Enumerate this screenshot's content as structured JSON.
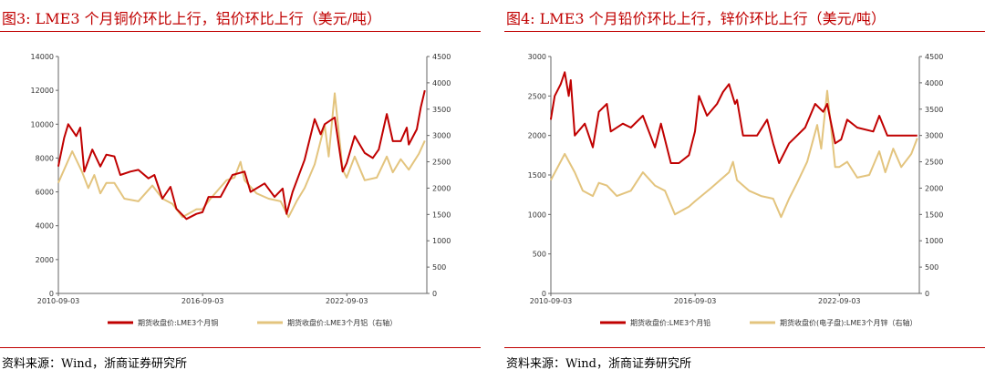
{
  "charts": [
    {
      "title": "图3:  LME3 个月铜价环比上行，铝价环比上行（美元/吨）",
      "source": "资料来源：Wind，浙商证券研究所"
    },
    {
      "title": "图4:  LME3 个月铅价环比上行，锌价环比上行（美元/吨）",
      "source": "资料来源：Wind，浙商证券研究所"
    }
  ],
  "chart_data": [
    {
      "type": "line",
      "xlim": [
        "2010-09-03",
        "2026-01-01"
      ],
      "xticks": [
        "2010-09-03",
        "2016-09-03",
        "2022-09-03"
      ],
      "ylim": [
        0,
        14000
      ],
      "yticks": [
        0,
        2000,
        4000,
        6000,
        8000,
        10000,
        12000,
        14000
      ],
      "y2lim": [
        0,
        4500
      ],
      "y2ticks": [
        0,
        500,
        1000,
        1500,
        2000,
        2500,
        3000,
        3500,
        4000,
        4500
      ],
      "legend": "bottom",
      "grid": false,
      "series": [
        {
          "name": "期货收盘价:LME3个月铜",
          "axis": "left",
          "color": "#c00000",
          "x": [
            "2010-09",
            "2010-12",
            "2011-02",
            "2011-06",
            "2011-08",
            "2011-10",
            "2012-02",
            "2012-06",
            "2012-09",
            "2013-01",
            "2013-04",
            "2013-09",
            "2014-01",
            "2014-06",
            "2014-09",
            "2015-01",
            "2015-05",
            "2015-08",
            "2016-01",
            "2016-06",
            "2016-09",
            "2016-12",
            "2017-06",
            "2017-12",
            "2018-06",
            "2018-09",
            "2019-04",
            "2019-09",
            "2020-01",
            "2020-03",
            "2020-06",
            "2020-12",
            "2021-05",
            "2021-08",
            "2021-10",
            "2022-03",
            "2022-07",
            "2022-09",
            "2023-01",
            "2023-06",
            "2023-10",
            "2024-01",
            "2024-05",
            "2024-08",
            "2024-12",
            "2025-03",
            "2025-04",
            "2025-08",
            "2025-10",
            "2025-12"
          ],
          "values": [
            7500,
            9200,
            10000,
            9300,
            9800,
            7200,
            8500,
            7500,
            8200,
            8100,
            7000,
            7200,
            7300,
            6800,
            7000,
            5600,
            6300,
            5000,
            4400,
            4700,
            4800,
            5700,
            5700,
            7000,
            7200,
            6000,
            6500,
            5700,
            6200,
            4700,
            6000,
            7900,
            10300,
            9400,
            10000,
            10400,
            7200,
            7700,
            9300,
            8300,
            8000,
            8500,
            10600,
            9000,
            9000,
            9800,
            8800,
            9700,
            11000,
            12000
          ]
        },
        {
          "name": "期货收盘价:LME3个月铝（右轴）",
          "axis": "right",
          "color": "#e3c47e",
          "x": [
            "2010-09",
            "2011-04",
            "2011-09",
            "2011-12",
            "2012-03",
            "2012-06",
            "2012-09",
            "2013-01",
            "2013-06",
            "2014-01",
            "2014-08",
            "2015-01",
            "2015-06",
            "2015-11",
            "2016-06",
            "2016-09",
            "2017-01",
            "2017-09",
            "2018-01",
            "2018-04",
            "2018-06",
            "2018-12",
            "2019-06",
            "2019-12",
            "2020-04",
            "2020-08",
            "2020-12",
            "2021-05",
            "2021-10",
            "2021-12",
            "2022-03",
            "2022-07",
            "2022-09",
            "2023-01",
            "2023-06",
            "2023-12",
            "2024-05",
            "2024-08",
            "2024-12",
            "2025-04",
            "2025-09",
            "2025-12"
          ],
          "values": [
            2100,
            2700,
            2300,
            2000,
            2250,
            1900,
            2100,
            2100,
            1800,
            1750,
            2050,
            1800,
            1700,
            1450,
            1600,
            1600,
            1800,
            2150,
            2200,
            2500,
            2150,
            1900,
            1800,
            1750,
            1450,
            1750,
            2000,
            2450,
            3200,
            2600,
            3800,
            2350,
            2200,
            2600,
            2150,
            2200,
            2600,
            2300,
            2550,
            2350,
            2650,
            2900
          ]
        }
      ]
    },
    {
      "type": "line",
      "xlim": [
        "2010-09-03",
        "2026-01-01"
      ],
      "xticks": [
        "2010-09-03",
        "2016-09-03",
        "2022-09-03"
      ],
      "ylim": [
        0,
        3000
      ],
      "yticks": [
        0,
        500,
        1000,
        1500,
        2000,
        2500,
        3000
      ],
      "y2lim": [
        0,
        4500
      ],
      "y2ticks": [
        0,
        500,
        1000,
        1500,
        2000,
        2500,
        3000,
        3500,
        4000,
        4500
      ],
      "legend": "bottom",
      "grid": false,
      "series": [
        {
          "name": "期货收盘价:LME3个月铅",
          "axis": "left",
          "color": "#c00000",
          "x": [
            "2010-09",
            "2010-11",
            "2011-02",
            "2011-04",
            "2011-06",
            "2011-07",
            "2011-09",
            "2012-02",
            "2012-06",
            "2012-09",
            "2013-01",
            "2013-03",
            "2013-09",
            "2014-01",
            "2014-07",
            "2015-01",
            "2015-04",
            "2015-09",
            "2016-01",
            "2016-06",
            "2016-09",
            "2016-11",
            "2017-03",
            "2017-08",
            "2017-11",
            "2018-02",
            "2018-05",
            "2018-06",
            "2018-09",
            "2019-01",
            "2019-04",
            "2019-09",
            "2019-12",
            "2020-03",
            "2020-08",
            "2020-12",
            "2021-04",
            "2021-09",
            "2022-01",
            "2022-03",
            "2022-07",
            "2022-10",
            "2023-01",
            "2023-06",
            "2024-02",
            "2024-05",
            "2024-09",
            "2025-02",
            "2025-07",
            "2025-12"
          ],
          "values": [
            2200,
            2500,
            2650,
            2800,
            2500,
            2700,
            2000,
            2150,
            1850,
            2300,
            2400,
            2050,
            2150,
            2100,
            2250,
            1850,
            2150,
            1650,
            1650,
            1750,
            2050,
            2500,
            2250,
            2400,
            2550,
            2650,
            2400,
            2450,
            2000,
            2000,
            2000,
            2200,
            1900,
            1650,
            1900,
            2000,
            2100,
            2400,
            2300,
            2400,
            1900,
            1950,
            2200,
            2100,
            2050,
            2250,
            2000,
            2000,
            2000,
            2000
          ]
        },
        {
          "name": "期货收盘价(电子盘):LME3个月锌（右轴）",
          "axis": "right",
          "color": "#e3c47e",
          "x": [
            "2010-09",
            "2011-04",
            "2011-09",
            "2012-01",
            "2012-06",
            "2012-09",
            "2013-01",
            "2013-06",
            "2014-01",
            "2014-07",
            "2015-01",
            "2015-06",
            "2015-11",
            "2016-06",
            "2016-09",
            "2017-05",
            "2018-02",
            "2018-04",
            "2018-06",
            "2018-12",
            "2019-06",
            "2019-12",
            "2020-04",
            "2020-08",
            "2020-12",
            "2021-05",
            "2021-10",
            "2021-12",
            "2022-03",
            "2022-07",
            "2022-09",
            "2023-01",
            "2023-06",
            "2023-12",
            "2024-05",
            "2024-08",
            "2024-12",
            "2025-04",
            "2025-09",
            "2025-12"
          ],
          "values": [
            2150,
            2650,
            2300,
            1950,
            1850,
            2100,
            2050,
            1850,
            1950,
            2300,
            2050,
            1950,
            1500,
            1650,
            1750,
            2000,
            2300,
            2500,
            2150,
            1950,
            1850,
            1800,
            1450,
            1800,
            2100,
            2500,
            3200,
            2750,
            3850,
            2400,
            2400,
            2500,
            2200,
            2250,
            2700,
            2300,
            2750,
            2400,
            2650,
            2950
          ]
        }
      ]
    }
  ]
}
